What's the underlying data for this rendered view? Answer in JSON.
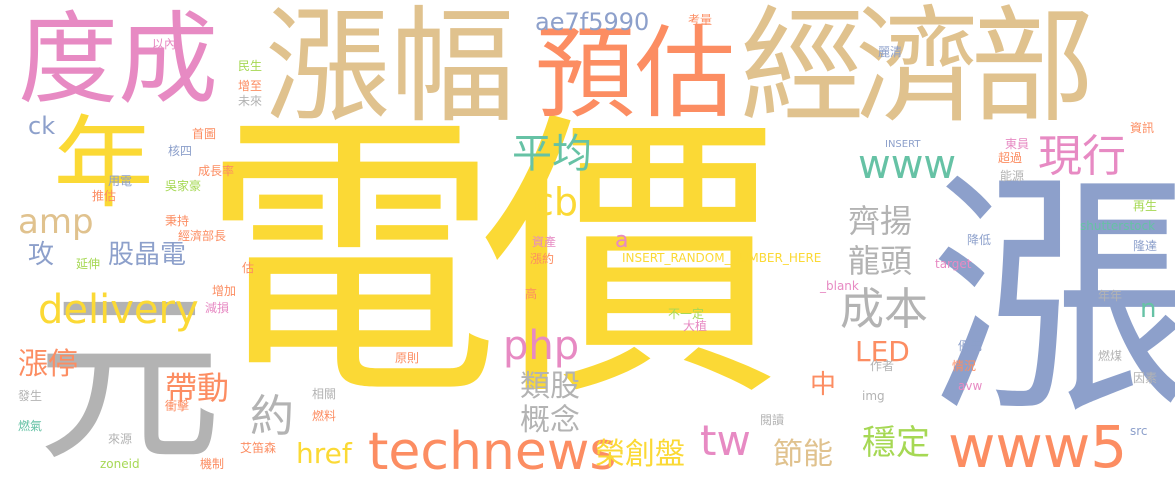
{
  "palette": {
    "yellow": "#FBD935",
    "tan": "#E0C28E",
    "grey": "#B3B3B3",
    "blue": "#8DA0CB",
    "pink": "#E78AC3",
    "orange": "#FC8D62",
    "green": "#66C2A5",
    "lime": "#A6D854"
  },
  "words": [
    "電價",
    "漲",
    "元",
    "年",
    "度成",
    "漲幅",
    "預估",
    "經濟部",
    "technews",
    "www5",
    "delivery",
    "amp",
    "www",
    "現行",
    "平均",
    "cb",
    "tw",
    "php",
    "成本",
    "齊揚",
    "龍頭",
    "ae7f5990",
    "ck",
    "股晶電",
    "攻",
    "漲停",
    "帶動",
    "約",
    "href",
    "類股",
    "概念",
    "中",
    "LED",
    "榮創盤",
    "節能",
    "穩定",
    "n",
    "a",
    "shutterstock",
    "INSERT_RANDOM_NUMBER_HERE",
    "target",
    "_blank",
    "INSERT",
    "img",
    "src",
    "avw",
    "zoneid",
    "以內",
    "民生",
    "增至",
    "未來",
    "首圖",
    "核四",
    "成長率",
    "用電",
    "推估",
    "吳家豪",
    "秉持",
    "經濟部長",
    "延伸",
    "估",
    "增加",
    "減損",
    "考量",
    "麗清",
    "東員",
    "超過",
    "資訊",
    "能源",
    "再生",
    "降低",
    "隆達",
    "年年",
    "優先",
    "燃煤",
    "因素",
    "情況",
    "作者",
    "大植",
    "不一定",
    "高",
    "原則",
    "漲約",
    "資產",
    "相關",
    "燃料",
    "衝擊",
    "發生",
    "燃氣",
    "來源",
    "機制",
    "艾笛森",
    "閱讀"
  ]
}
